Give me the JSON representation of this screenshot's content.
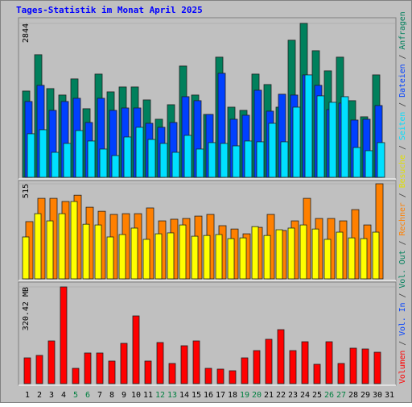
{
  "chart_data": {
    "type": "bar",
    "title": "Tages-Statistik im Monat April 2025",
    "categories": [
      "1",
      "2",
      "3",
      "4",
      "5",
      "6",
      "7",
      "8",
      "9",
      "10",
      "11",
      "12",
      "13",
      "14",
      "15",
      "16",
      "17",
      "18",
      "19",
      "20",
      "21",
      "22",
      "23",
      "24",
      "25",
      "26",
      "27",
      "28",
      "29",
      "30",
      "31"
    ],
    "category_colors": [
      "#000",
      "#000",
      "#000",
      "#000",
      "#008040",
      "#008040",
      "#000",
      "#000",
      "#000",
      "#000",
      "#000",
      "#008040",
      "#008040",
      "#000",
      "#000",
      "#000",
      "#000",
      "#000",
      "#008040",
      "#008040",
      "#000",
      "#000",
      "#000",
      "#000",
      "#000",
      "#008040",
      "#008040",
      "#000",
      "#000",
      "#000",
      "#000"
    ],
    "legend_separator": "/",
    "legend": [
      {
        "name": "Volumen",
        "color": "#FF0000"
      },
      {
        "name": "Vol. In",
        "color": "#0040FF"
      },
      {
        "name": "Vol. Out",
        "color": "#00805C"
      },
      {
        "name": "Rechner",
        "color": "#FF8000"
      },
      {
        "name": "Besuche",
        "color": "#E0E000"
      },
      {
        "name": "Seiten",
        "color": "#00E0FF"
      },
      {
        "name": "Dateien",
        "color": "#0040FF"
      },
      {
        "name": "Anfragen",
        "color": "#00805C"
      }
    ],
    "panels": [
      {
        "ylim": [
          0,
          2844
        ],
        "yticks": [
          2844
        ],
        "series": [
          {
            "color": "#00805C",
            "values": [
              1594,
              2265,
              1639,
              1520,
              1818,
              1267,
              1907,
              1579,
              1669,
              1669,
              1430,
              1073,
              1341,
              2056,
              1520,
              1162,
              2220,
              1296,
              1237,
              1907,
              1714,
              1296,
              2533,
              2844,
              2339,
              1967,
              2220,
              1416,
              1118,
              1892,
              null
            ]
          },
          {
            "color": "#0040FF",
            "values": [
              1401,
              1699,
              1237,
              1401,
              1460,
              1013,
              1460,
              1237,
              1281,
              1281,
              998,
              924,
              1013,
              1490,
              1416,
              1162,
              1922,
              1073,
              1147,
              1609,
              1222,
              1535,
              1520,
              1892,
              1699,
              1252,
              1371,
              1058,
              1073,
              1326,
              null
            ]
          },
          {
            "color": "#00E0FF",
            "values": [
              805,
              879,
              462,
              626,
              864,
              671,
              522,
              402,
              745,
              924,
              700,
              626,
              462,
              775,
              522,
              641,
              626,
              581,
              671,
              656,
              998,
              656,
              1296,
              1892,
              1505,
              1386,
              1490,
              551,
              492,
              641,
              null
            ]
          }
        ]
      },
      {
        "ylim": [
          0,
          515
        ],
        "yticks": [
          515
        ],
        "series": [
          {
            "color": "#FF8000",
            "values": [
              310,
              436,
              436,
              419,
              453,
              388,
              366,
              349,
              353,
              353,
              384,
              314,
              323,
              327,
              340,
              349,
              288,
              270,
              244,
              279,
              349,
              262,
              314,
              436,
              327,
              327,
              314,
              375,
              292,
              515,
              null
            ]
          },
          {
            "color": "#FFFF00",
            "values": [
              227,
              353,
              314,
              353,
              419,
              296,
              292,
              227,
              240,
              275,
              214,
              244,
              249,
              292,
              231,
              235,
              240,
              218,
              222,
              283,
              235,
              266,
              275,
              292,
              270,
              214,
              253,
              222,
              218,
              253,
              null
            ]
          }
        ]
      },
      {
        "ylim": [
          0,
          320.42
        ],
        "yticks": [
          {
            "value": 320.42,
            "label": "320.42 MB"
          }
        ],
        "series": [
          {
            "color": "#FF0000",
            "values": [
              85.4,
              93.5,
              141.5,
              320.42,
              50.7,
              101.5,
              101.5,
              74.8,
              133.5,
              224.3,
              74.8,
              136.2,
              66.8,
              125.5,
              141.5,
              50.7,
              48.1,
              42.7,
              85.4,
              109.5,
              146.9,
              178.9,
              109.5,
              138.8,
              64.1,
              138.8,
              66.8,
              117.5,
              114.8,
              104.1,
              null
            ]
          }
        ]
      }
    ]
  }
}
